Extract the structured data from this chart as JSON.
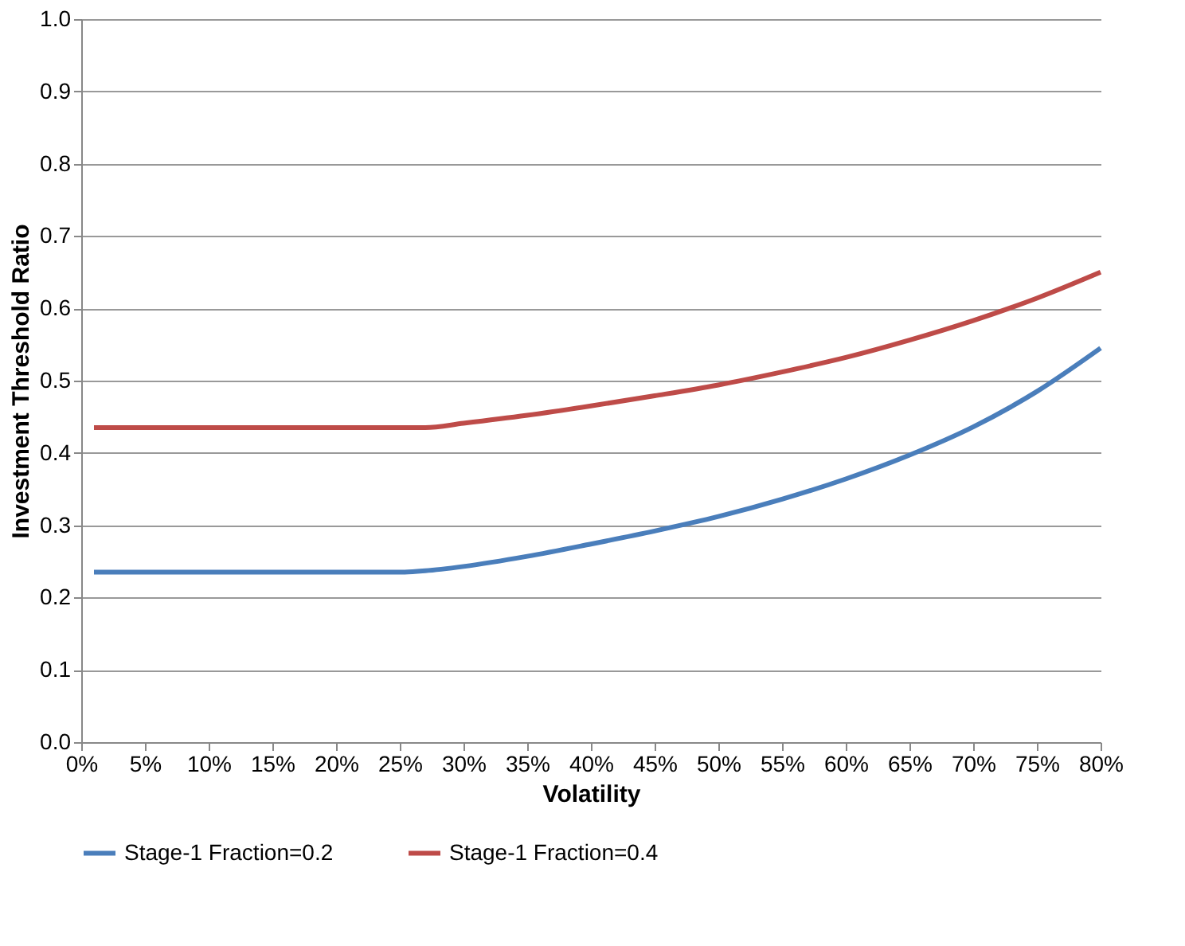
{
  "chart_data": {
    "type": "line",
    "xlabel": "Volatility",
    "ylabel": "Investment Threshold Ratio",
    "x": [
      1,
      5,
      10,
      15,
      20,
      25,
      27,
      30,
      35,
      40,
      45,
      50,
      55,
      60,
      65,
      70,
      75,
      80
    ],
    "series": [
      {
        "name": "Stage-1 Fraction=0.2",
        "color": "#4a7ebb",
        "values": [
          0.235,
          0.235,
          0.235,
          0.235,
          0.235,
          0.235,
          0.237,
          0.243,
          0.257,
          0.274,
          0.292,
          0.312,
          0.336,
          0.364,
          0.397,
          0.436,
          0.485,
          0.545
        ]
      },
      {
        "name": "Stage-1 Fraction=0.4",
        "color": "#be4b48",
        "values": [
          0.435,
          0.435,
          0.435,
          0.435,
          0.435,
          0.435,
          0.435,
          0.441,
          0.452,
          0.465,
          0.479,
          0.494,
          0.512,
          0.532,
          0.556,
          0.583,
          0.614,
          0.65
        ]
      }
    ],
    "xlim": [
      0,
      80
    ],
    "xticks": [
      {
        "value": 0,
        "label": "0%"
      },
      {
        "value": 5,
        "label": "5%"
      },
      {
        "value": 10,
        "label": "10%"
      },
      {
        "value": 15,
        "label": "15%"
      },
      {
        "value": 20,
        "label": "20%"
      },
      {
        "value": 25,
        "label": "25%"
      },
      {
        "value": 30,
        "label": "30%"
      },
      {
        "value": 35,
        "label": "35%"
      },
      {
        "value": 40,
        "label": "40%"
      },
      {
        "value": 45,
        "label": "45%"
      },
      {
        "value": 50,
        "label": "50%"
      },
      {
        "value": 55,
        "label": "55%"
      },
      {
        "value": 60,
        "label": "60%"
      },
      {
        "value": 65,
        "label": "65%"
      },
      {
        "value": 70,
        "label": "70%"
      },
      {
        "value": 75,
        "label": "75%"
      },
      {
        "value": 80,
        "label": "80%"
      }
    ],
    "ylim": [
      0,
      1
    ],
    "yticks": [
      {
        "value": 0,
        "label": "0.0"
      },
      {
        "value": 0.1,
        "label": "0.1"
      },
      {
        "value": 0.2,
        "label": "0.2"
      },
      {
        "value": 0.3,
        "label": "0.3"
      },
      {
        "value": 0.4,
        "label": "0.4"
      },
      {
        "value": 0.5,
        "label": "0.5"
      },
      {
        "value": 0.6,
        "label": "0.6"
      },
      {
        "value": 0.7,
        "label": "0.7"
      },
      {
        "value": 0.8,
        "label": "0.8"
      },
      {
        "value": 0.9,
        "label": "0.9"
      },
      {
        "value": 1,
        "label": "1.0"
      }
    ],
    "grid": "y",
    "legend": "bottom",
    "marker": "none",
    "line_style": "solid"
  }
}
